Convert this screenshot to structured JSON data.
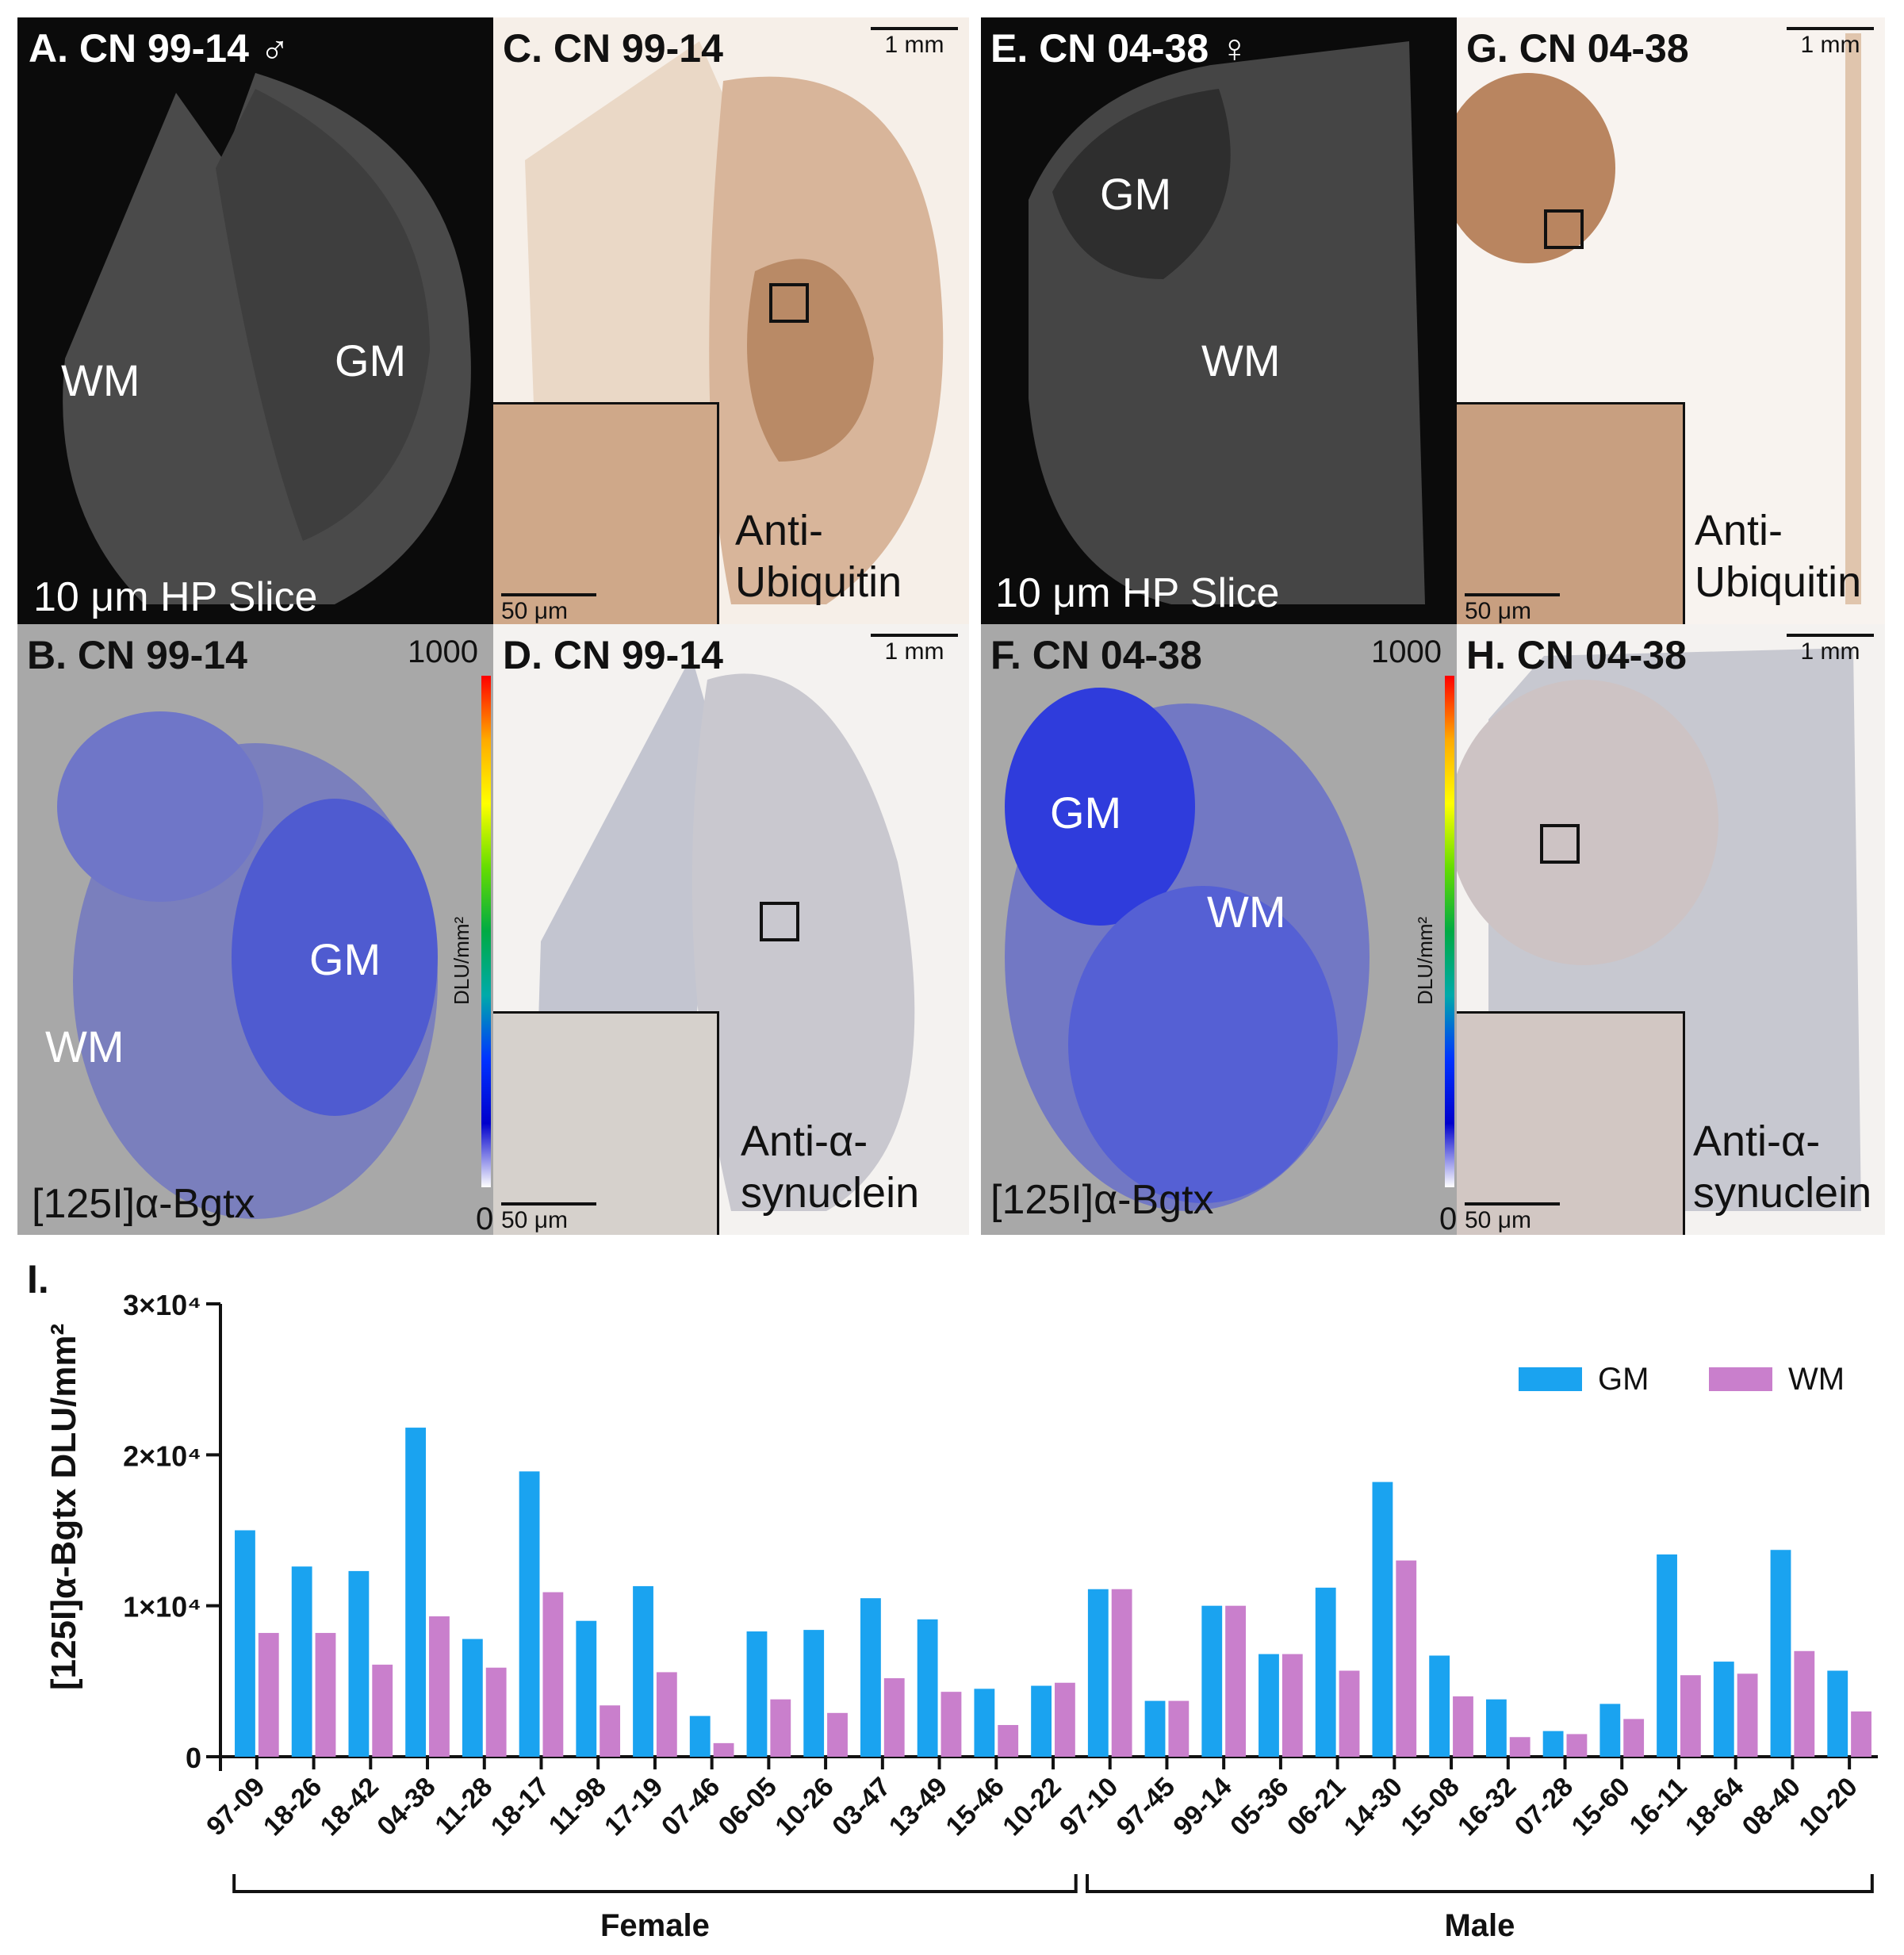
{
  "panels": {
    "A": {
      "label": "A. CN 99-14 ♂",
      "wm": "WM",
      "gm": "GM",
      "caption": "10 μm HP Slice"
    },
    "B": {
      "label": "B. CN 99-14",
      "gm": "GM",
      "wm": "WM",
      "caption": "[125I]α-Bgtx",
      "cbar_max": "1000",
      "cbar_min": "0",
      "cbar_unit": "DLU/mm²"
    },
    "C": {
      "label": "C. CN 99-14",
      "scale": "1 mm",
      "inset_scale": "50 μm",
      "stain": "Anti-\nUbiquitin"
    },
    "D": {
      "label": "D. CN 99-14",
      "scale": "1 mm",
      "inset_scale": "50 μm",
      "stain": "Anti-α-\nsynuclein"
    },
    "E": {
      "label": "E. CN 04-38 ♀",
      "gm": "GM",
      "wm": "WM",
      "caption": "10 μm HP Slice"
    },
    "F": {
      "label": "F. CN 04-38",
      "gm": "GM",
      "wm": "WM",
      "caption": "[125I]α-Bgtx",
      "cbar_max": "1000",
      "cbar_min": "0",
      "cbar_unit": "DLU/mm²"
    },
    "G": {
      "label": "G. CN 04-38",
      "scale": "1 mm",
      "inset_scale": "50 μm",
      "stain": "Anti-\nUbiquitin"
    },
    "H": {
      "label": "H. CN 04-38",
      "scale": "1 mm",
      "inset_scale": "50 μm",
      "stain": "Anti-α-\nsynuclein"
    }
  },
  "colors": {
    "gm": "#1aa3f0",
    "wm": "#c97fcc"
  },
  "chart_data": {
    "type": "bar",
    "panel_label": "I.",
    "ylabel": "[125I]α-Bgtx DLU/mm²",
    "ylim": [
      0,
      30000
    ],
    "yticks": [
      "0",
      "1×10⁴",
      "2×10⁴",
      "3×10⁴"
    ],
    "legend": [
      "GM",
      "WM"
    ],
    "legend_position": "top-right",
    "categories": [
      "97-09",
      "18-26",
      "18-42",
      "04-38",
      "11-28",
      "18-17",
      "11-98",
      "17-19",
      "07-46",
      "06-05",
      "10-26",
      "03-47",
      "13-49",
      "15-46",
      "10-22",
      "97-10",
      "97-45",
      "99-14",
      "05-36",
      "06-21",
      "14-30",
      "15-08",
      "16-32",
      "07-28",
      "15-60",
      "16-11",
      "18-64",
      "08-40",
      "10-20"
    ],
    "series": [
      {
        "name": "GM",
        "values": [
          15000,
          12600,
          12300,
          21800,
          7800,
          18900,
          9000,
          11300,
          2700,
          8300,
          8400,
          10500,
          9100,
          4500,
          4700,
          11100,
          3700,
          10000,
          6800,
          11200,
          18200,
          6700,
          3800,
          1700,
          3500,
          13400,
          6300,
          13700,
          5700
        ]
      },
      {
        "name": "WM",
        "values": [
          8200,
          8200,
          6100,
          9300,
          5900,
          10900,
          3400,
          5600,
          900,
          3800,
          2900,
          5200,
          4300,
          2100,
          4900,
          11100,
          3700,
          10000,
          6800,
          5700,
          13000,
          4000,
          1300,
          1500,
          2500,
          5400,
          5500,
          7000,
          3000
        ]
      }
    ],
    "groups": [
      {
        "name": "Female",
        "from": 0,
        "to": 14
      },
      {
        "name": "Male",
        "from": 15,
        "to": 28
      }
    ]
  }
}
